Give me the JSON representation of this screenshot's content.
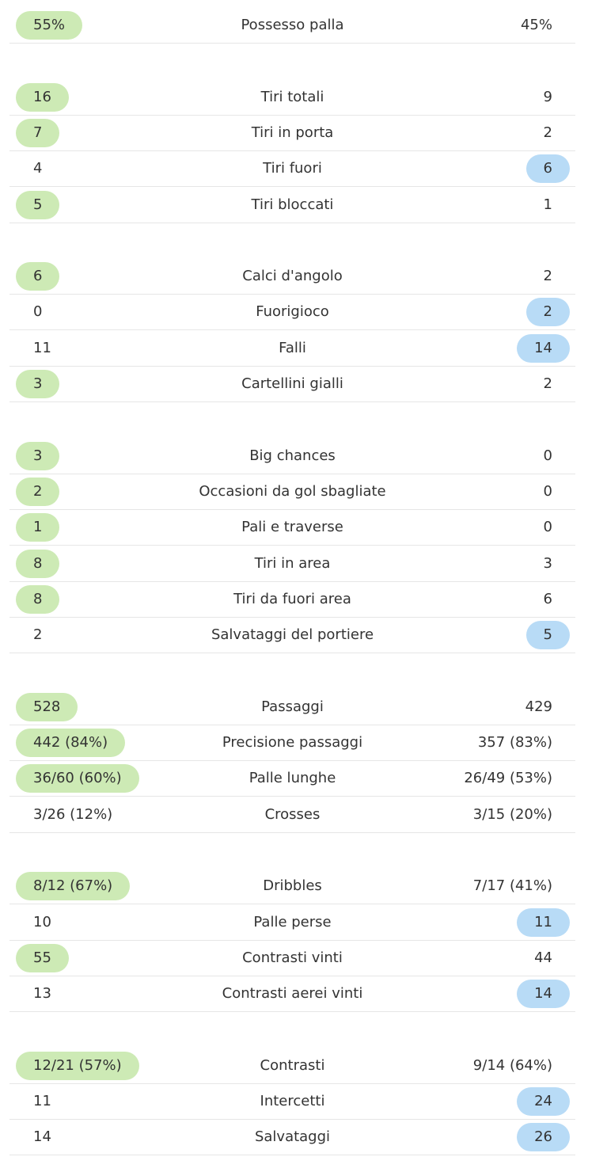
{
  "groups": [
    {
      "rows": [
        {
          "home": "55%",
          "label": "Possesso palla",
          "away": "45%",
          "highlight": "home"
        }
      ]
    },
    {
      "rows": [
        {
          "home": "16",
          "label": "Tiri totali",
          "away": "9",
          "highlight": "home"
        },
        {
          "home": "7",
          "label": "Tiri in porta",
          "away": "2",
          "highlight": "home"
        },
        {
          "home": "4",
          "label": "Tiri fuori",
          "away": "6",
          "highlight": "away"
        },
        {
          "home": "5",
          "label": "Tiri bloccati",
          "away": "1",
          "highlight": "home"
        }
      ]
    },
    {
      "rows": [
        {
          "home": "6",
          "label": "Calci d'angolo",
          "away": "2",
          "highlight": "home"
        },
        {
          "home": "0",
          "label": "Fuorigioco",
          "away": "2",
          "highlight": "away"
        },
        {
          "home": "11",
          "label": "Falli",
          "away": "14",
          "highlight": "away"
        },
        {
          "home": "3",
          "label": "Cartellini gialli",
          "away": "2",
          "highlight": "home"
        }
      ]
    },
    {
      "rows": [
        {
          "home": "3",
          "label": "Big chances",
          "away": "0",
          "highlight": "home"
        },
        {
          "home": "2",
          "label": "Occasioni da gol sbagliate",
          "away": "0",
          "highlight": "home"
        },
        {
          "home": "1",
          "label": "Pali e traverse",
          "away": "0",
          "highlight": "home"
        },
        {
          "home": "8",
          "label": "Tiri in area",
          "away": "3",
          "highlight": "home"
        },
        {
          "home": "8",
          "label": "Tiri da fuori area",
          "away": "6",
          "highlight": "home"
        },
        {
          "home": "2",
          "label": "Salvataggi del portiere",
          "away": "5",
          "highlight": "away"
        }
      ]
    },
    {
      "rows": [
        {
          "home": "528",
          "label": "Passaggi",
          "away": "429",
          "highlight": "home"
        },
        {
          "home": "442 (84%)",
          "label": "Precisione passaggi",
          "away": "357 (83%)",
          "highlight": "home"
        },
        {
          "home": "36/60 (60%)",
          "label": "Palle lunghe",
          "away": "26/49 (53%)",
          "highlight": "home"
        },
        {
          "home": "3/26 (12%)",
          "label": "Crosses",
          "away": "3/15 (20%)"
        }
      ]
    },
    {
      "rows": [
        {
          "home": "8/12 (67%)",
          "label": "Dribbles",
          "away": "7/17 (41%)",
          "highlight": "home"
        },
        {
          "home": "10",
          "label": "Palle perse",
          "away": "11",
          "highlight": "away"
        },
        {
          "home": "55",
          "label": "Contrasti vinti",
          "away": "44",
          "highlight": "home"
        },
        {
          "home": "13",
          "label": "Contrasti aerei vinti",
          "away": "14",
          "highlight": "away"
        }
      ]
    },
    {
      "rows": [
        {
          "home": "12/21 (57%)",
          "label": "Contrasti",
          "away": "9/14 (64%)",
          "highlight": "home"
        },
        {
          "home": "11",
          "label": "Intercetti",
          "away": "24",
          "highlight": "away"
        },
        {
          "home": "14",
          "label": "Salvataggi",
          "away": "26",
          "highlight": "away"
        }
      ]
    }
  ]
}
